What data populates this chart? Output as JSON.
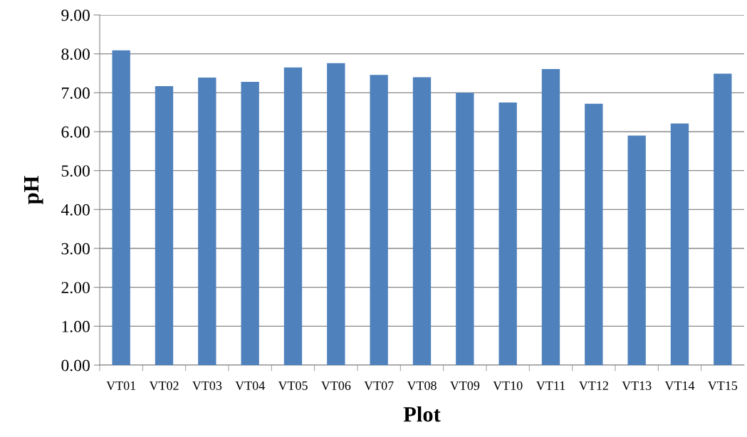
{
  "chart_data": {
    "type": "bar",
    "xlabel": "Plot",
    "ylabel": "pH",
    "categories": [
      "VT01",
      "VT02",
      "VT03",
      "VT04",
      "VT05",
      "VT06",
      "VT07",
      "VT08",
      "VT09",
      "VT10",
      "VT11",
      "VT12",
      "VT13",
      "VT14",
      "VT15"
    ],
    "values": [
      8.09,
      7.17,
      7.39,
      7.28,
      7.65,
      7.76,
      7.46,
      7.4,
      7.0,
      6.75,
      7.61,
      6.72,
      5.9,
      6.21,
      7.49
    ],
    "color": "#4f81bd",
    "ylim": [
      0,
      9
    ],
    "yticks": [
      {
        "value": 0,
        "label": "0.00"
      },
      {
        "value": 1,
        "label": "1.00"
      },
      {
        "value": 2,
        "label": "2.00"
      },
      {
        "value": 3,
        "label": "3.00"
      },
      {
        "value": 4,
        "label": "4.00"
      },
      {
        "value": 5,
        "label": "5.00"
      },
      {
        "value": 6,
        "label": "6.00"
      },
      {
        "value": 7,
        "label": "7.00"
      },
      {
        "value": 8,
        "label": "8.00"
      },
      {
        "value": 9,
        "label": "9.00"
      }
    ],
    "grid": "y",
    "legend": false
  }
}
